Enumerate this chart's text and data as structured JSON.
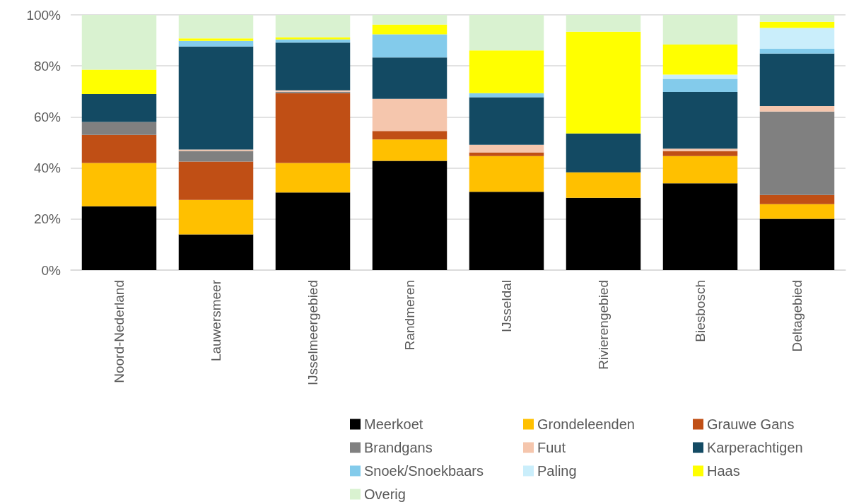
{
  "chart_data": {
    "type": "bar",
    "stacked": true,
    "grid": "y",
    "legend": "bottom",
    "categories": [
      "Noord-Nederland",
      "Lauwersmeer",
      "IJsselmeergebied",
      "Randmeren",
      "IJsseldal",
      "Rivierengebied",
      "Biesbosch",
      "Deltagebied"
    ],
    "ylim": [
      0,
      100
    ],
    "yticks": [
      {
        "value": 0,
        "label": "0%"
      },
      {
        "value": 20,
        "label": "20%"
      },
      {
        "value": 40,
        "label": "40%"
      },
      {
        "value": 60,
        "label": "60%"
      },
      {
        "value": 80,
        "label": "80%"
      },
      {
        "value": 100,
        "label": "100%"
      }
    ],
    "series": [
      {
        "name": "Meerkoet",
        "color": "#000000",
        "values": [
          25,
          14,
          30.4,
          42.8,
          30.7,
          28.3,
          34,
          20.1
        ]
      },
      {
        "name": "Grondeleenden",
        "color": "#ffc000",
        "values": [
          17,
          13.5,
          11.6,
          8.4,
          14,
          10,
          10.7,
          5.7
        ]
      },
      {
        "name": "Grauwe Gans",
        "color": "#c04f15",
        "values": [
          11,
          15,
          27.3,
          3.3,
          1.4,
          0,
          1.9,
          3.6
        ]
      },
      {
        "name": "Brandgans",
        "color": "#808080",
        "values": [
          5,
          4.2,
          0.6,
          0,
          0,
          0,
          0,
          32.7
        ]
      },
      {
        "name": "Fuut",
        "color": "#f5c6ad",
        "values": [
          0,
          0.5,
          0.5,
          12.6,
          3,
          0,
          1,
          2.2
        ]
      },
      {
        "name": "Karperachtigen",
        "color": "#134a63",
        "values": [
          11,
          40.4,
          18.7,
          16.2,
          18.6,
          15.2,
          22.2,
          20.5
        ]
      },
      {
        "name": "Snoek/Snoekbaars",
        "color": "#83cbeb",
        "values": [
          0,
          2.2,
          1.3,
          9.1,
          1.6,
          0,
          5.1,
          1.9
        ]
      },
      {
        "name": "Paling",
        "color": "#caeefb",
        "values": [
          0,
          0,
          0,
          0,
          0,
          0,
          1.7,
          8.2
        ]
      },
      {
        "name": "Haas",
        "color": "#ffff00",
        "values": [
          9.5,
          1,
          0.8,
          3.8,
          16.8,
          39.9,
          11.8,
          2.4
        ]
      },
      {
        "name": "Overig",
        "color": "#d9f2d0",
        "values": [
          21.5,
          9.2,
          8.8,
          3.8,
          13.9,
          6.6,
          11.6,
          2.7
        ]
      }
    ]
  }
}
